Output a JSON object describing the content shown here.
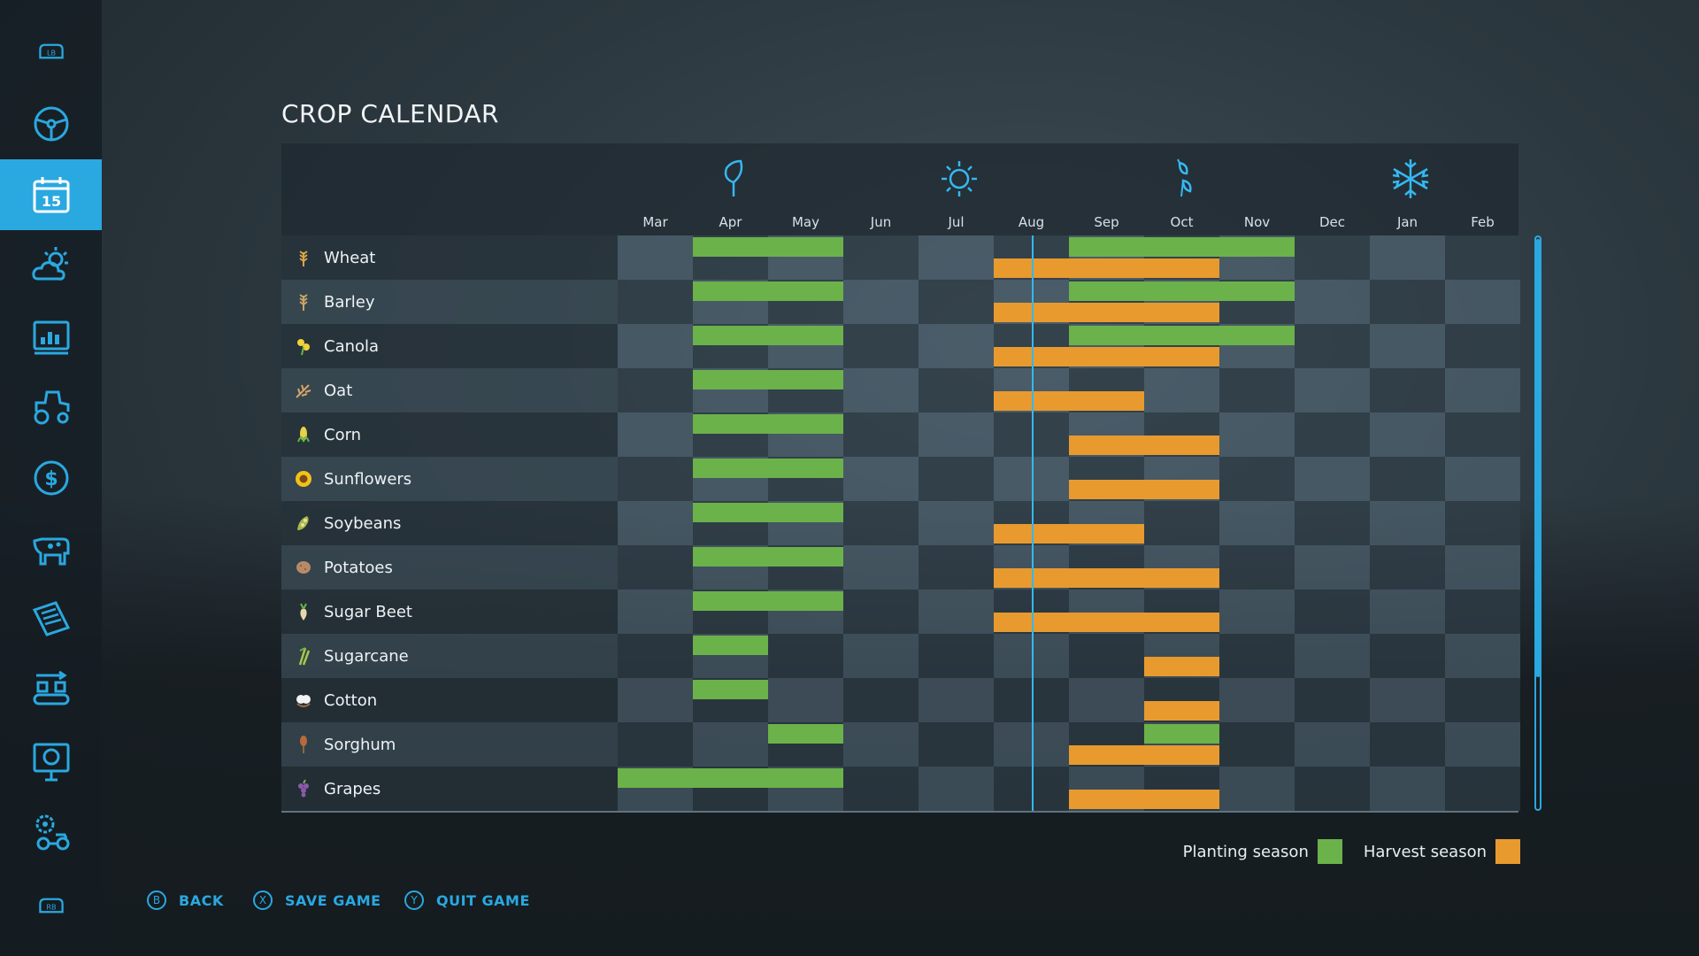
{
  "sidebar": {
    "top_badge": "LB",
    "bottom_badge": "RB",
    "items": [
      {
        "icon": "steering-wheel-icon"
      },
      {
        "icon": "calendar-icon",
        "label": "15",
        "active": true
      },
      {
        "icon": "weather-icon"
      },
      {
        "icon": "statistics-icon"
      },
      {
        "icon": "tractor-icon"
      },
      {
        "icon": "finances-icon"
      },
      {
        "icon": "animals-icon"
      },
      {
        "icon": "contracts-icon"
      },
      {
        "icon": "production-icon"
      },
      {
        "icon": "help-icon"
      },
      {
        "icon": "settings-icon"
      }
    ]
  },
  "page": {
    "title": "CROP CALENDAR"
  },
  "calendar": {
    "months": [
      "Mar",
      "Apr",
      "May",
      "Jun",
      "Jul",
      "Aug",
      "Sep",
      "Oct",
      "Nov",
      "Dec",
      "Jan",
      "Feb"
    ],
    "seasons": [
      {
        "name": "spring",
        "icon": "leaf-icon",
        "month_index": 1
      },
      {
        "name": "summer",
        "icon": "sun-icon",
        "month_index": 4
      },
      {
        "name": "autumn",
        "icon": "falling-leaves-icon",
        "month_index": 7
      },
      {
        "name": "winter",
        "icon": "snowflake-icon",
        "month_index": 10
      }
    ],
    "current_month": "Aug",
    "current_position": 0.5,
    "crops": [
      {
        "name": "Wheat",
        "icon": "wheat-icon",
        "planting": [
          [
            1,
            3
          ],
          [
            6,
            9
          ]
        ],
        "harvest": [
          [
            5,
            8
          ]
        ]
      },
      {
        "name": "Barley",
        "icon": "barley-icon",
        "planting": [
          [
            1,
            3
          ],
          [
            6,
            9
          ]
        ],
        "harvest": [
          [
            5,
            8
          ]
        ]
      },
      {
        "name": "Canola",
        "icon": "canola-icon",
        "planting": [
          [
            1,
            3
          ],
          [
            6,
            9
          ]
        ],
        "harvest": [
          [
            5,
            8
          ]
        ]
      },
      {
        "name": "Oat",
        "icon": "oat-icon",
        "planting": [
          [
            1,
            3
          ]
        ],
        "harvest": [
          [
            5,
            7
          ]
        ]
      },
      {
        "name": "Corn",
        "icon": "corn-icon",
        "planting": [
          [
            1,
            3
          ]
        ],
        "harvest": [
          [
            6,
            8
          ]
        ]
      },
      {
        "name": "Sunflowers",
        "icon": "sunflower-icon",
        "planting": [
          [
            1,
            3
          ]
        ],
        "harvest": [
          [
            6,
            8
          ]
        ]
      },
      {
        "name": "Soybeans",
        "icon": "soybean-icon",
        "planting": [
          [
            1,
            3
          ]
        ],
        "harvest": [
          [
            5,
            7
          ]
        ]
      },
      {
        "name": "Potatoes",
        "icon": "potato-icon",
        "planting": [
          [
            1,
            3
          ]
        ],
        "harvest": [
          [
            5,
            8
          ]
        ]
      },
      {
        "name": "Sugar Beet",
        "icon": "sugar-beet-icon",
        "planting": [
          [
            1,
            3
          ]
        ],
        "harvest": [
          [
            5,
            8
          ]
        ]
      },
      {
        "name": "Sugarcane",
        "icon": "sugarcane-icon",
        "planting": [
          [
            1,
            2
          ]
        ],
        "harvest": [
          [
            7,
            8
          ]
        ]
      },
      {
        "name": "Cotton",
        "icon": "cotton-icon",
        "planting": [
          [
            1,
            2
          ]
        ],
        "harvest": [
          [
            7,
            8
          ]
        ]
      },
      {
        "name": "Sorghum",
        "icon": "sorghum-icon",
        "planting": [
          [
            2,
            3
          ],
          [
            7,
            8
          ]
        ],
        "harvest": [
          [
            6,
            8
          ]
        ]
      },
      {
        "name": "Grapes",
        "icon": "grapes-icon",
        "planting": [
          [
            0,
            3
          ]
        ],
        "harvest": [
          [
            6,
            8
          ]
        ]
      }
    ]
  },
  "legend": {
    "planting_label": "Planting season",
    "harvest_label": "Harvest season",
    "planting_color": "#6bb24a",
    "harvest_color": "#e89a2e"
  },
  "buttons": [
    {
      "glyph": "B",
      "label": "BACK"
    },
    {
      "glyph": "X",
      "label": "SAVE GAME"
    },
    {
      "glyph": "Y",
      "label": "QUIT GAME"
    }
  ],
  "colors": {
    "accent": "#2aa8e0"
  }
}
